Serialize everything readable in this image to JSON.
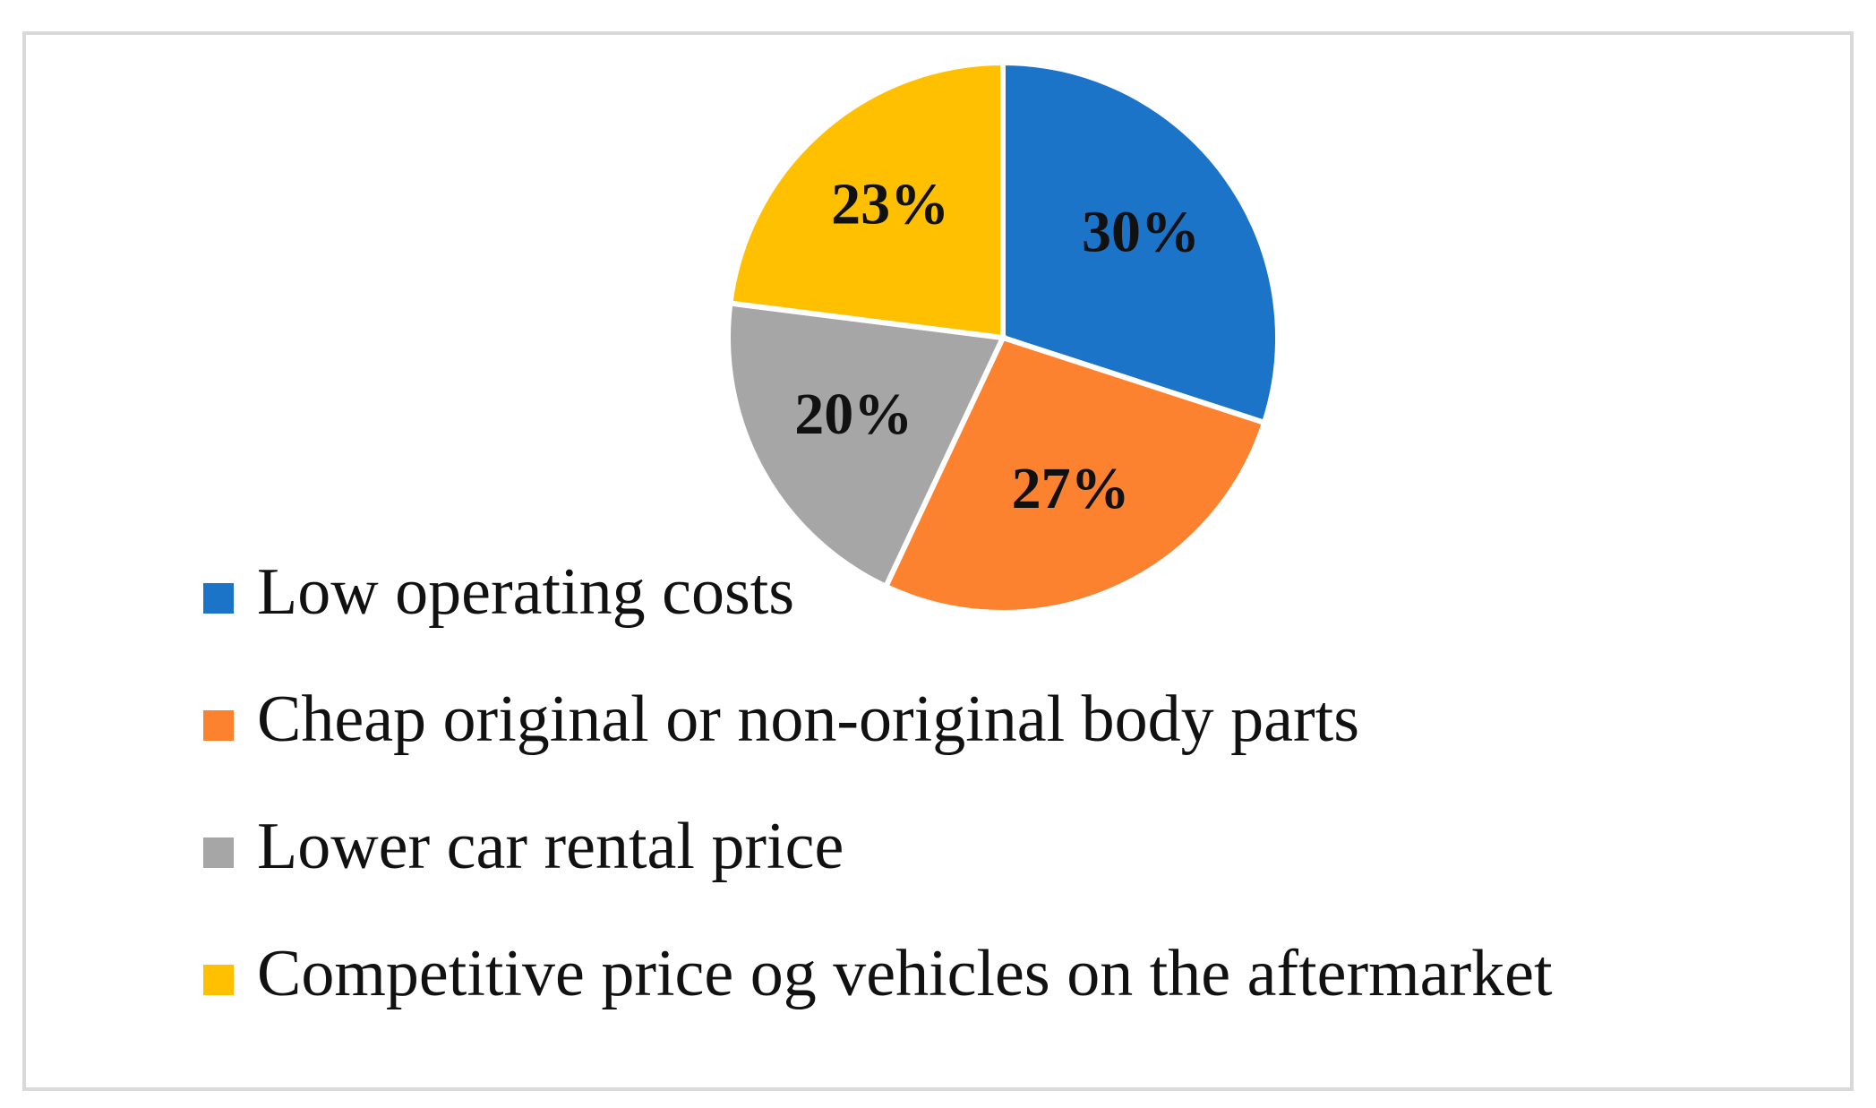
{
  "chart_data": {
    "type": "pie",
    "categories": [
      "Low operating costs",
      "Cheap original or non-original body parts",
      "Lower car rental price",
      "Competitive price og vehicles on the aftermarket"
    ],
    "values": [
      30,
      27,
      20,
      23
    ],
    "value_labels": [
      "30%",
      "27%",
      "20%",
      "23%"
    ],
    "colors": [
      "#1c74c9",
      "#fd8230",
      "#a6a6a6",
      "#fec000"
    ]
  }
}
